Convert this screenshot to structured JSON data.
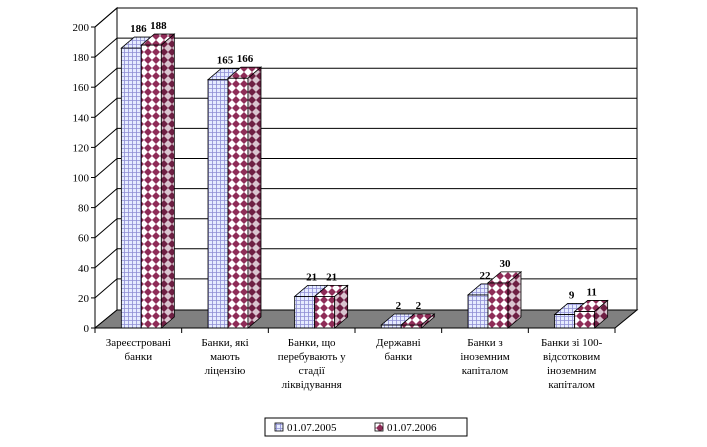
{
  "chart_data": {
    "type": "bar",
    "title": "",
    "xlabel": "",
    "ylabel": "",
    "ylim": [
      0,
      200
    ],
    "yticks": [
      "0",
      "20",
      "40",
      "60",
      "80",
      "100",
      "120",
      "140",
      "160",
      "180",
      "200"
    ],
    "grid": true,
    "style": "3d",
    "legend_position": "bottom",
    "categories": [
      [
        "Зареєстровані",
        "банки"
      ],
      [
        "Банки, які",
        "мають",
        "ліцензію"
      ],
      [
        "Банки, що",
        "перебувають у",
        "стадії",
        "ліквідування"
      ],
      [
        "Державні",
        "банки"
      ],
      [
        "Банки з",
        "іноземним",
        "капіталом"
      ],
      [
        "Банки зі 100-",
        "відсотковим",
        "іноземним",
        "капіталом"
      ]
    ],
    "series": [
      {
        "name": "01.07.2005",
        "values": [
          186,
          165,
          21,
          2,
          22,
          9
        ],
        "color": "#e6ecff",
        "pattern": "grid",
        "pattern_color": "#8e8ed4",
        "edge_color": "#000000"
      },
      {
        "name": "01.07.2006",
        "values": [
          188,
          166,
          21,
          2,
          30,
          11
        ],
        "color": "#ffffff",
        "pattern": "diamonds",
        "pattern_color": "#8e2c57",
        "edge_color": "#000000"
      }
    ]
  }
}
